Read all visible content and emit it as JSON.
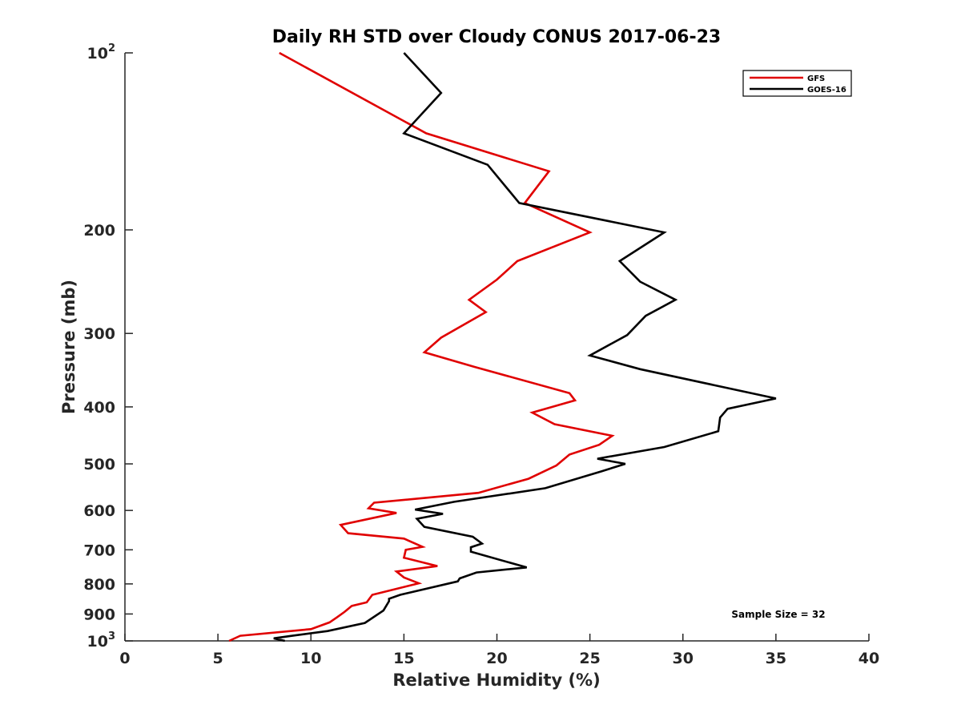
{
  "chart_data": {
    "type": "line",
    "title": "Daily RH STD over Cloudy CONUS 2017-06-23",
    "xlabel": "Relative Humidity (%)",
    "ylabel": "Pressure (mb)",
    "xlim": [
      0,
      40
    ],
    "ylim": [
      100,
      1000
    ],
    "y_scale": "log",
    "y_reversed": true,
    "grid": false,
    "legend_position": "top-right",
    "x_ticks": [
      {
        "value": 0,
        "label": "0"
      },
      {
        "value": 5,
        "label": "5"
      },
      {
        "value": 10,
        "label": "10"
      },
      {
        "value": 15,
        "label": "15"
      },
      {
        "value": 20,
        "label": "20"
      },
      {
        "value": 25,
        "label": "25"
      },
      {
        "value": 30,
        "label": "30"
      },
      {
        "value": 35,
        "label": "35"
      },
      {
        "value": 40,
        "label": "40"
      }
    ],
    "y_ticks": [
      {
        "value": 100,
        "label": "10",
        "sup": "2"
      },
      {
        "value": 200,
        "label": "200",
        "sup": ""
      },
      {
        "value": 300,
        "label": "300",
        "sup": ""
      },
      {
        "value": 400,
        "label": "400",
        "sup": ""
      },
      {
        "value": 500,
        "label": "500",
        "sup": ""
      },
      {
        "value": 600,
        "label": "600",
        "sup": ""
      },
      {
        "value": 700,
        "label": "700",
        "sup": ""
      },
      {
        "value": 800,
        "label": "800",
        "sup": ""
      },
      {
        "value": 900,
        "label": "900",
        "sup": ""
      },
      {
        "value": 1000,
        "label": "10",
        "sup": "3"
      }
    ],
    "annotation": "Sample Size = 32",
    "series": [
      {
        "name": "GFS",
        "color": "#e00000",
        "points": [
          [
            8.3,
            100
          ],
          [
            16.2,
            137
          ],
          [
            22.8,
            159
          ],
          [
            21.5,
            180
          ],
          [
            25.0,
            202
          ],
          [
            21.1,
            226
          ],
          [
            20.0,
            243
          ],
          [
            18.5,
            263
          ],
          [
            19.4,
            276
          ],
          [
            17.0,
            305
          ],
          [
            16.1,
            323
          ],
          [
            18.8,
            342
          ],
          [
            23.9,
            379
          ],
          [
            24.2,
            390
          ],
          [
            21.9,
            409
          ],
          [
            23.1,
            428
          ],
          [
            26.2,
            448
          ],
          [
            25.5,
            464
          ],
          [
            23.9,
            482
          ],
          [
            23.2,
            503
          ],
          [
            21.7,
            530
          ],
          [
            19.0,
            560
          ],
          [
            13.4,
            582
          ],
          [
            13.1,
            595
          ],
          [
            14.6,
            606
          ],
          [
            11.6,
            635
          ],
          [
            12.0,
            656
          ],
          [
            15.0,
            670
          ],
          [
            16.0,
            692
          ],
          [
            15.1,
            700
          ],
          [
            15.0,
            722
          ],
          [
            16.8,
            746
          ],
          [
            14.6,
            762
          ],
          [
            15.0,
            780
          ],
          [
            15.8,
            798
          ],
          [
            13.3,
            835
          ],
          [
            13.0,
            860
          ],
          [
            12.2,
            872
          ],
          [
            11.8,
            893
          ],
          [
            11.4,
            912
          ],
          [
            11.0,
            930
          ],
          [
            10.0,
            955
          ],
          [
            6.2,
            980
          ],
          [
            5.6,
            1000
          ]
        ]
      },
      {
        "name": "GOES-16",
        "color": "#000000",
        "points": [
          [
            15.0,
            100
          ],
          [
            17.0,
            117
          ],
          [
            15.0,
            137
          ],
          [
            19.5,
            155
          ],
          [
            21.2,
            180
          ],
          [
            29.0,
            202
          ],
          [
            26.6,
            226
          ],
          [
            27.7,
            245
          ],
          [
            29.6,
            263
          ],
          [
            28.0,
            280
          ],
          [
            27.0,
            302
          ],
          [
            25.0,
            327
          ],
          [
            27.7,
            345
          ],
          [
            35.0,
            387
          ],
          [
            32.4,
            403
          ],
          [
            32.0,
            417
          ],
          [
            31.9,
            440
          ],
          [
            29.0,
            468
          ],
          [
            25.4,
            490
          ],
          [
            26.9,
            500
          ],
          [
            25.6,
            515
          ],
          [
            22.6,
            550
          ],
          [
            17.7,
            580
          ],
          [
            15.6,
            598
          ],
          [
            17.1,
            608
          ],
          [
            15.7,
            620
          ],
          [
            16.1,
            640
          ],
          [
            18.7,
            665
          ],
          [
            19.2,
            683
          ],
          [
            18.6,
            693
          ],
          [
            18.6,
            705
          ],
          [
            21.6,
            750
          ],
          [
            18.9,
            765
          ],
          [
            18.0,
            783
          ],
          [
            17.9,
            792
          ],
          [
            14.8,
            835
          ],
          [
            14.2,
            848
          ],
          [
            14.2,
            856
          ],
          [
            13.9,
            888
          ],
          [
            12.9,
            932
          ],
          [
            10.9,
            962
          ],
          [
            9.0,
            980
          ],
          [
            8.0,
            990
          ],
          [
            8.6,
            1000
          ]
        ]
      }
    ]
  }
}
